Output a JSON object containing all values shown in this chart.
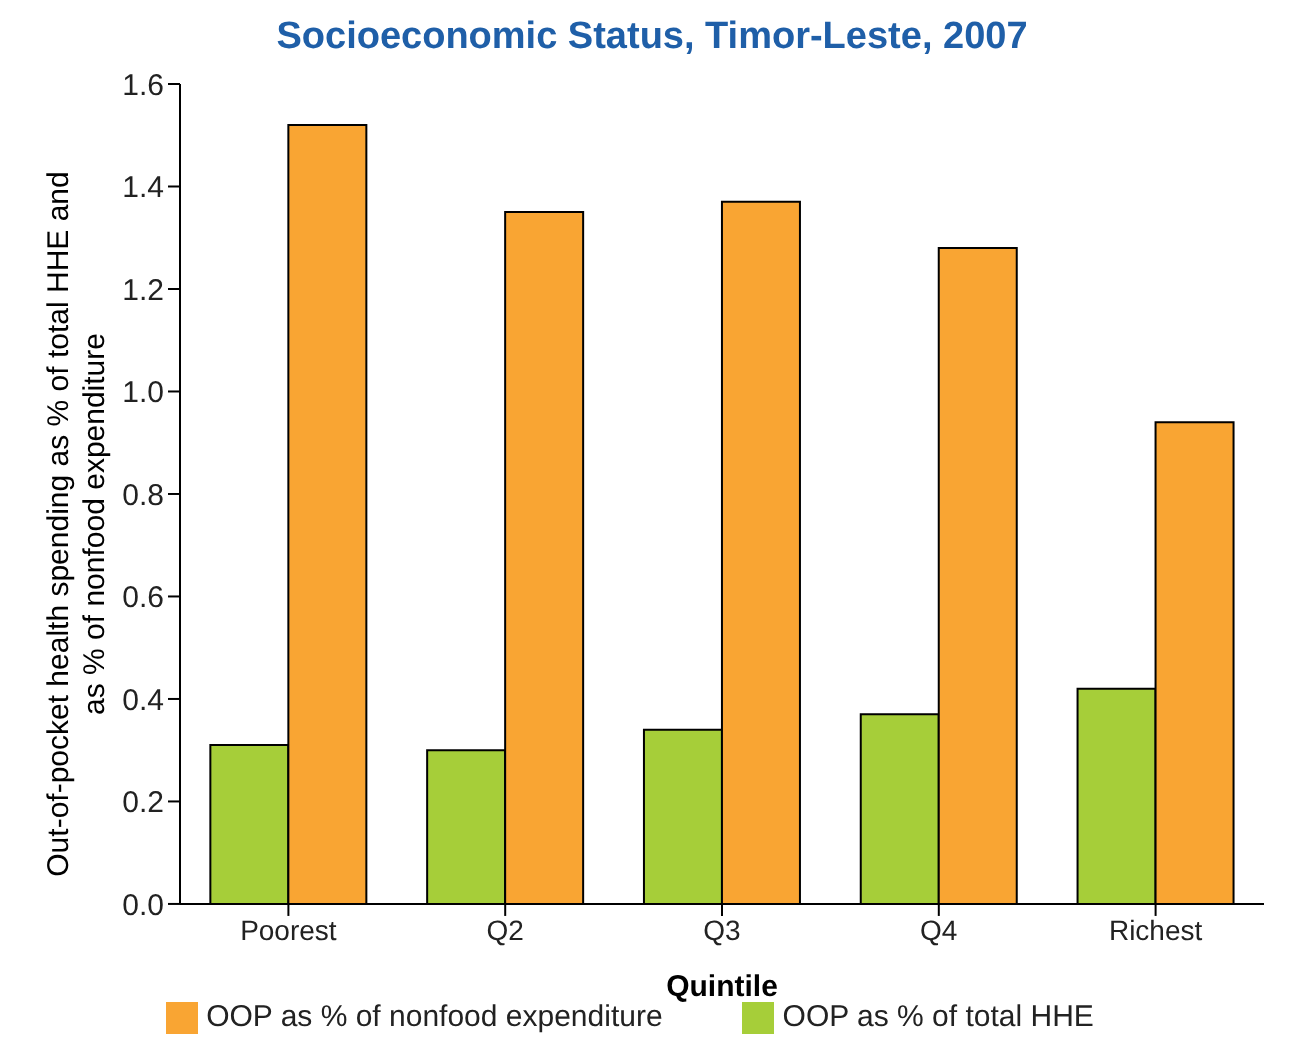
{
  "chart_data": {
    "type": "bar",
    "title": "Socioeconomic Status, Timor-Leste, 2007",
    "xlabel": "Quintile",
    "ylabel": "Out-of-pocket health spending as % of total HHE and as % of nonfood expenditure",
    "categories": [
      "Poorest",
      "Q2",
      "Q3",
      "Q4",
      "Richest"
    ],
    "series": [
      {
        "name": "OOP as % of total HHE",
        "color": "#a6ce39",
        "values": [
          0.31,
          0.3,
          0.34,
          0.37,
          0.42
        ]
      },
      {
        "name": "OOP as % of nonfood expenditure",
        "color": "#f9a533",
        "values": [
          1.52,
          1.35,
          1.37,
          1.28,
          0.94
        ]
      }
    ],
    "ylim": [
      0,
      1.6
    ],
    "yticks": [
      {
        "value": 0,
        "label": "0.0"
      },
      {
        "value": 0.2,
        "label": "0.2"
      },
      {
        "value": 0.4,
        "label": "0.4"
      },
      {
        "value": 0.6,
        "label": "0.6"
      },
      {
        "value": 0.8,
        "label": "0.8"
      },
      {
        "value": 1.0,
        "label": "1.0"
      },
      {
        "value": 1.2,
        "label": "1.2"
      },
      {
        "value": 1.4,
        "label": "1.4"
      },
      {
        "value": 1.6,
        "label": "1.6"
      }
    ],
    "grid": false,
    "legend": "bottom"
  }
}
